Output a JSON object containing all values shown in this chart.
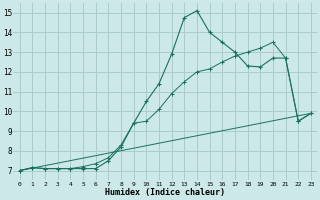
{
  "xlabel": "Humidex (Indice chaleur)",
  "bg_color": "#cce8e8",
  "grid_color": "#aacccc",
  "line_color": "#1a7060",
  "xlim": [
    -0.5,
    23.5
  ],
  "ylim": [
    6.5,
    15.5
  ],
  "xticks": [
    0,
    1,
    2,
    3,
    4,
    5,
    6,
    7,
    8,
    9,
    10,
    11,
    12,
    13,
    14,
    15,
    16,
    17,
    18,
    19,
    20,
    21,
    22,
    23
  ],
  "yticks": [
    7,
    8,
    9,
    10,
    11,
    12,
    13,
    14,
    15
  ],
  "line1_x": [
    0,
    1,
    2,
    3,
    4,
    5,
    6,
    7,
    8,
    9,
    10,
    11,
    12,
    13,
    14,
    15,
    16,
    17,
    18,
    19,
    20,
    21,
    22,
    23
  ],
  "line1_y": [
    7.0,
    7.15,
    7.1,
    7.1,
    7.1,
    7.1,
    7.1,
    7.5,
    8.2,
    9.4,
    10.5,
    11.4,
    12.9,
    14.75,
    15.1,
    14.0,
    13.5,
    13.0,
    12.3,
    12.25,
    12.7,
    12.7,
    9.5,
    9.9
  ],
  "line2_x": [
    0,
    1,
    2,
    3,
    4,
    5,
    6,
    7,
    8,
    9,
    10,
    11,
    12,
    13,
    14,
    15,
    16,
    17,
    18,
    19,
    20,
    21,
    22,
    23
  ],
  "line2_y": [
    7.0,
    7.15,
    7.1,
    7.1,
    7.1,
    7.2,
    7.35,
    7.65,
    8.3,
    9.4,
    9.5,
    10.1,
    10.9,
    11.5,
    12.0,
    12.15,
    12.5,
    12.8,
    13.0,
    13.2,
    13.5,
    12.7,
    9.5,
    9.9
  ],
  "line3_x": [
    0,
    23
  ],
  "line3_y": [
    7.0,
    9.9
  ]
}
